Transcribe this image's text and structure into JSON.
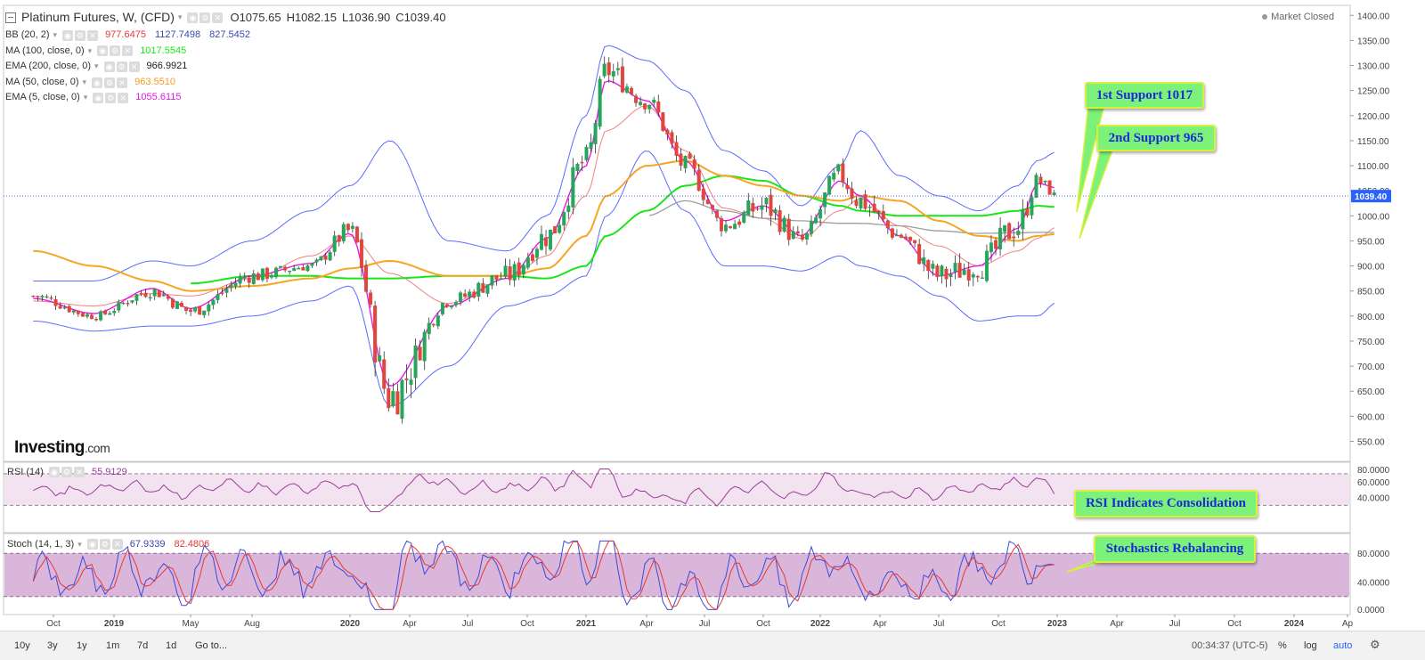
{
  "title": {
    "symbol": "Platinum Futures, W, (CFD)",
    "open": "O1075.65",
    "high": "H1082.15",
    "low": "L1036.90",
    "close": "C1039.40"
  },
  "market_status": "Market Closed",
  "logo": {
    "brand": "Investing",
    "suffix": ".com"
  },
  "indicators": [
    {
      "name": "BB (20, 2)",
      "values": [
        "977.6475",
        "1127.7498",
        "827.5452"
      ],
      "colors": [
        "#e53935",
        "#3949ab",
        "#3949ab"
      ]
    },
    {
      "name": "MA (100, close, 0)",
      "values": [
        "1017.5545"
      ],
      "colors": [
        "#19e619"
      ]
    },
    {
      "name": "EMA (200, close, 0)",
      "values": [
        "966.9921"
      ],
      "colors": [
        "#222222"
      ]
    },
    {
      "name": "MA (50, close, 0)",
      "values": [
        "963.5510"
      ],
      "colors": [
        "#f59a23"
      ]
    },
    {
      "name": "EMA (5, close, 0)",
      "values": [
        "1055.6115"
      ],
      "colors": [
        "#e619e6"
      ]
    }
  ],
  "rsi": {
    "name": "RSI (14)",
    "value": "55.9129",
    "axis": [
      "80.0000",
      "60.0000",
      "40.0000"
    ]
  },
  "stoch": {
    "name": "Stoch (14, 1, 3)",
    "k": "67.9339",
    "d": "82.4806",
    "axis": [
      "80.0000",
      "40.0000",
      "0.0000"
    ]
  },
  "last_price_label": "1039.40",
  "callouts": {
    "support1": "1st Support 1017",
    "support2": "2nd Support 965",
    "rsi": "RSI Indicates Consolidation",
    "stoch": "Stochastics Rebalancing"
  },
  "bottom_bar": {
    "timeframes": [
      "10y",
      "3y",
      "1y",
      "1m",
      "7d",
      "1d"
    ],
    "goto": "Go to...",
    "clock": "00:34:37 (UTC-5)",
    "right": [
      "%",
      "log",
      "auto"
    ]
  },
  "colors": {
    "up": "#26a65b",
    "down": "#e0463b",
    "bb": "#5c6bff",
    "ma100": "#19e619",
    "ema200": "#9e9e9e",
    "ma50": "#f5a623",
    "ema5": "#e619e6",
    "bbmid": "#f08080",
    "rsi_band": "#f3e3f0",
    "stoch_band": "#d9b6da"
  },
  "chart_data": {
    "type": "line",
    "title": "Platinum Futures, W, (CFD)",
    "y_axis": {
      "range": [
        510,
        1420
      ],
      "ticks": [
        "1400.00",
        "1350.00",
        "1300.00",
        "1250.00",
        "1200.00",
        "1150.00",
        "1100.00",
        "1050.00",
        "1000.00",
        "950.00",
        "900.00",
        "850.00",
        "800.00",
        "750.00",
        "700.00",
        "650.00",
        "600.00",
        "550.00"
      ]
    },
    "x_axis": {
      "labels": [
        "Oct",
        "2019",
        "May",
        "Aug",
        "2020",
        "Apr",
        "Jul",
        "Oct",
        "2021",
        "Apr",
        "Jul",
        "Oct",
        "2022",
        "Apr",
        "Jul",
        "Oct",
        "2023",
        "Apr",
        "Jul",
        "Oct",
        "2024",
        "Ap"
      ]
    },
    "price_anchors": {
      "x": [
        "2018-09",
        "2018-12",
        "2019-03",
        "2019-05",
        "2019-08",
        "2019-11",
        "2020-01",
        "2020-03",
        "2020-06",
        "2020-09",
        "2020-11",
        "2021-01",
        "2021-02",
        "2021-04",
        "2021-06",
        "2021-08",
        "2021-10",
        "2021-12",
        "2022-02",
        "2022-03",
        "2022-05",
        "2022-07",
        "2022-09",
        "2022-11",
        "2022-12",
        "2023-01"
      ],
      "close": [
        840,
        800,
        850,
        810,
        880,
        900,
        970,
        640,
        830,
        880,
        960,
        1110,
        1290,
        1230,
        1100,
        980,
        1020,
        950,
        1080,
        1030,
        960,
        880,
        900,
        980,
        1070,
        1039
      ],
      "high": [
        860,
        830,
        890,
        880,
        960,
        940,
        1060,
        880,
        880,
        990,
        1060,
        1200,
        1350,
        1290,
        1180,
        1050,
        1100,
        1020,
        1120,
        1190,
        1010,
        990,
        1000,
        1090,
        1110,
        1082
      ],
      "low": [
        770,
        780,
        800,
        790,
        860,
        870,
        920,
        555,
        790,
        840,
        870,
        1000,
        1170,
        1150,
        1040,
        940,
        900,
        890,
        940,
        1000,
        900,
        810,
        820,
        860,
        1000,
        1037
      ]
    },
    "series": [
      {
        "name": "BB upper",
        "values": [
          870,
          870,
          910,
          900,
          950,
          1010,
          1060,
          1150,
          950,
          930,
          1000,
          1200,
          1340,
          1310,
          1250,
          1130,
          1090,
          1020,
          1100,
          1170,
          1080,
          1040,
          1010,
          1060,
          1110,
          1127.7
        ]
      },
      {
        "name": "BB lower",
        "values": [
          790,
          770,
          780,
          780,
          800,
          830,
          860,
          620,
          700,
          820,
          840,
          880,
          1000,
          1130,
          1010,
          900,
          900,
          890,
          920,
          900,
          880,
          840,
          790,
          800,
          800,
          827.5
        ]
      },
      {
        "name": "MA (100, close, 0)",
        "values": [
          null,
          null,
          null,
          865,
          880,
          880,
          875,
          875,
          880,
          880,
          875,
          900,
          960,
          1010,
          1060,
          1080,
          1070,
          1040,
          1020,
          1010,
          1000,
          1000,
          1000,
          1010,
          1020,
          1017.6
        ]
      },
      {
        "name": "EMA (200, close, 0)",
        "values": [
          null,
          null,
          null,
          null,
          null,
          null,
          null,
          null,
          null,
          null,
          null,
          null,
          null,
          1000,
          1030,
          1010,
          995,
          990,
          985,
          985,
          980,
          970,
          965,
          966,
          967,
          967
        ]
      },
      {
        "name": "MA (50, close, 0)",
        "values": [
          930,
          900,
          870,
          850,
          860,
          875,
          895,
          910,
          880,
          880,
          895,
          960,
          1040,
          1100,
          1110,
          1080,
          1060,
          1040,
          1030,
          1040,
          1030,
          990,
          960,
          950,
          960,
          963.6
        ]
      },
      {
        "name": "EMA (5, close, 0)",
        "values": [
          835,
          805,
          855,
          815,
          880,
          905,
          965,
          660,
          820,
          875,
          955,
          1100,
          1270,
          1230,
          1110,
          990,
          1020,
          960,
          1070,
          1040,
          960,
          880,
          900,
          975,
          1065,
          1055.6
        ]
      }
    ],
    "rsi": {
      "name": "RSI (14)",
      "ylim": [
        0,
        80
      ],
      "last": 55.9129
    },
    "stochastic": {
      "name": "Stoch (14, 1, 3)",
      "ylim": [
        0,
        100
      ],
      "k_last": 67.9339,
      "d_last": 82.4806
    }
  }
}
